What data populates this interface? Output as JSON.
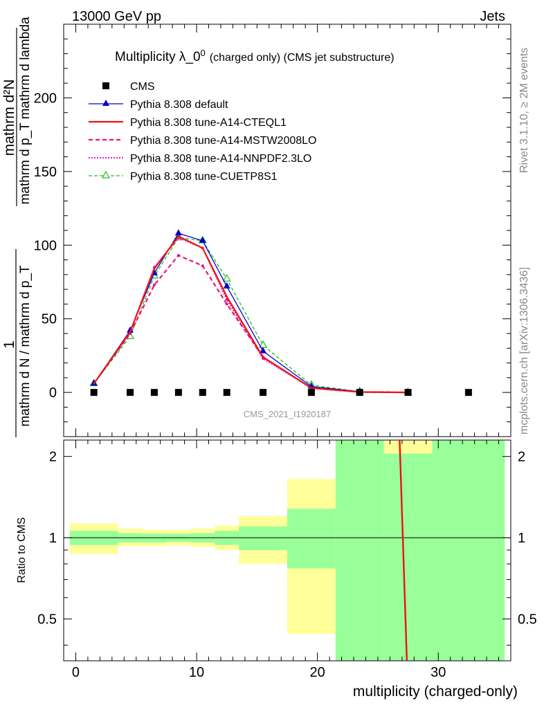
{
  "header": {
    "energy_label": "13000 GeV pp",
    "process_label": "Jets"
  },
  "side_labels": {
    "rivet_text": "Rivet 3.1.10, ≥ 2M events",
    "mcplots_text": "mcplots.cern.ch [arXiv:1306.3436]"
  },
  "chart_data": {
    "type": "line",
    "title": "Multiplicity λ_0",
    "title_sup": "0",
    "title_suffix": "(charged only) (CMS jet substructure)",
    "watermark": "CMS_2021_I1920187",
    "xlabel": "multiplicity (charged-only)",
    "ylabel_main": {
      "numerator": "mathrm d²N",
      "denominator": "mathrm d p_T mathrm d lambda",
      "one": "1",
      "prefactor": "mathrm d N / mathrm d p_T"
    },
    "ylabel_ratio": "Ratio to CMS",
    "xlim": [
      -1,
      36
    ],
    "ylim_main": [
      -30,
      250
    ],
    "ylim_ratio": [
      0.35,
      2.3
    ],
    "x_ticks": [
      "0",
      "10",
      "20",
      "30"
    ],
    "y_ticks_main": [
      "0",
      "50",
      "100",
      "150",
      "200"
    ],
    "y_ticks_ratio": [
      "0.5",
      "1",
      "2"
    ],
    "legend": [
      {
        "label": "CMS",
        "color": "#000000",
        "style": "marker-square"
      },
      {
        "label": "Pythia 8.308 default",
        "color": "#0000cc",
        "style": "solid-triangle"
      },
      {
        "label": "Pythia 8.308 tune-A14-CTEQL1",
        "color": "#ee1111",
        "style": "solid"
      },
      {
        "label": "Pythia 8.308 tune-A14-MSTW2008LO",
        "color": "#ee1177",
        "style": "dashed"
      },
      {
        "label": "Pythia 8.308 tune-A14-NNPDF2.3LO",
        "color": "#ee11cc",
        "style": "dotted"
      },
      {
        "label": "Pythia 8.308 tune-CUETP8S1",
        "color": "#22bb22",
        "style": "dashed-open-triangle"
      }
    ],
    "data_points": {
      "name": "CMS",
      "x": [
        1.5,
        4.5,
        6.5,
        8.5,
        10.5,
        12.5,
        15.5,
        19.5,
        23.5,
        27.5,
        32.5
      ],
      "y": [
        0,
        0,
        0,
        0,
        0,
        0,
        0,
        0,
        0,
        0,
        0
      ]
    },
    "series": [
      {
        "name": "Pythia 8.308 default",
        "color": "#0000cc",
        "x": [
          1.5,
          4.5,
          6.5,
          8.5,
          10.5,
          12.5,
          15.5,
          19.5,
          23.5,
          27.5
        ],
        "y": [
          6,
          42,
          81,
          108,
          103,
          72,
          28,
          4,
          0.5,
          0
        ]
      },
      {
        "name": "Pythia 8.308 tune-A14-CTEQL1",
        "color": "#ee1111",
        "x": [
          1.5,
          4.5,
          6.5,
          8.5,
          10.5,
          12.5,
          15.5,
          19.5,
          23.5,
          27.5
        ],
        "y": [
          6,
          41,
          84,
          106,
          98,
          65,
          24,
          3,
          0.3,
          0
        ]
      },
      {
        "name": "Pythia 8.308 tune-A14-MSTW2008LO",
        "color": "#ee1177",
        "x": [
          1.5,
          4.5,
          6.5,
          8.5,
          10.5,
          12.5,
          15.5,
          19.5,
          23.5,
          27.5
        ],
        "y": [
          6,
          40,
          73,
          93,
          86,
          60,
          24,
          3,
          0.3,
          0
        ]
      },
      {
        "name": "Pythia 8.308 tune-A14-NNPDF2.3LO",
        "color": "#ee11cc",
        "x": [
          1.5,
          4.5,
          6.5,
          8.5,
          10.5,
          12.5,
          15.5,
          19.5,
          23.5,
          27.5
        ],
        "y": [
          6,
          41,
          85,
          105,
          98,
          63,
          23,
          3,
          0.3,
          0
        ]
      },
      {
        "name": "Pythia 8.308 tune-CUETP8S1",
        "color": "#22bb22",
        "x": [
          1.5,
          4.5,
          6.5,
          8.5,
          10.5,
          12.5,
          15.5,
          19.5,
          23.5,
          27.5
        ],
        "y": [
          6,
          38,
          79,
          105,
          103,
          77,
          32,
          5,
          0.5,
          0
        ]
      }
    ],
    "ratio_bands": [
      {
        "xlo": -0.5,
        "xhi": 3.5,
        "green": [
          0.94,
          1.06
        ],
        "yellow": [
          0.87,
          1.13
        ]
      },
      {
        "xlo": 3.5,
        "xhi": 5.5,
        "green": [
          0.96,
          1.04
        ],
        "yellow": [
          0.93,
          1.08
        ]
      },
      {
        "xlo": 5.5,
        "xhi": 7.5,
        "green": [
          0.96,
          1.035
        ],
        "yellow": [
          0.93,
          1.07
        ]
      },
      {
        "xlo": 7.5,
        "xhi": 9.5,
        "green": [
          0.965,
          1.035
        ],
        "yellow": [
          0.935,
          1.07
        ]
      },
      {
        "xlo": 9.5,
        "xhi": 11.5,
        "green": [
          0.96,
          1.04
        ],
        "yellow": [
          0.925,
          1.08
        ]
      },
      {
        "xlo": 11.5,
        "xhi": 13.5,
        "green": [
          0.94,
          1.06
        ],
        "yellow": [
          0.9,
          1.11
        ]
      },
      {
        "xlo": 13.5,
        "xhi": 17.5,
        "green": [
          0.9,
          1.1
        ],
        "yellow": [
          0.8,
          1.2
        ]
      },
      {
        "xlo": 17.5,
        "xhi": 21.5,
        "green": [
          0.77,
          1.28
        ],
        "yellow": [
          0.44,
          1.65
        ]
      },
      {
        "xlo": 21.5,
        "xhi": 25.5,
        "green": [
          0.35,
          2.3
        ],
        "yellow": [
          0.35,
          2.3
        ]
      },
      {
        "xlo": 25.5,
        "xhi": 29.5,
        "green": [
          0.35,
          2.05
        ],
        "yellow": [
          0.35,
          2.3
        ]
      },
      {
        "xlo": 29.5,
        "xhi": 35.5,
        "green": [
          0.35,
          2.3
        ],
        "yellow": [
          0.35,
          2.3
        ]
      }
    ],
    "ratio_line": {
      "name": "Pythia 8.308 tune-A14-CTEQL1",
      "color": "#ee1111",
      "x": [
        26.8,
        27.4
      ],
      "y": [
        2.3,
        0.35
      ]
    }
  }
}
